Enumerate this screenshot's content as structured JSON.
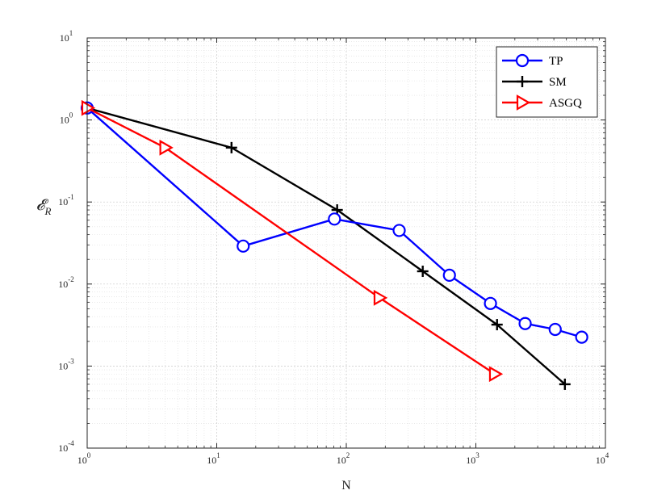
{
  "chart_data": {
    "type": "line",
    "title": "",
    "xlabel": "N",
    "ylabel": "𝓔_R",
    "ylabel_main": "𝓔",
    "ylabel_sub": "R",
    "x_scale": "log",
    "y_scale": "log",
    "xlim": [
      1,
      10000
    ],
    "ylim": [
      0.0001,
      10
    ],
    "grid": true,
    "legend_position": "top-right",
    "x_ticks": [
      {
        "value": 1,
        "base": "10",
        "exp": "0"
      },
      {
        "value": 10,
        "base": "10",
        "exp": "1"
      },
      {
        "value": 100,
        "base": "10",
        "exp": "2"
      },
      {
        "value": 1000,
        "base": "10",
        "exp": "3"
      },
      {
        "value": 10000,
        "base": "10",
        "exp": "4"
      }
    ],
    "y_ticks": [
      {
        "value": 0.0001,
        "base": "10",
        "exp": "-4"
      },
      {
        "value": 0.001,
        "base": "10",
        "exp": "-3"
      },
      {
        "value": 0.01,
        "base": "10",
        "exp": "-2"
      },
      {
        "value": 0.1,
        "base": "10",
        "exp": "-1"
      },
      {
        "value": 1,
        "base": "10",
        "exp": "0"
      },
      {
        "value": 10,
        "base": "10",
        "exp": "1"
      }
    ],
    "series": [
      {
        "name": "TP",
        "color": "#0000ff",
        "marker": "circle",
        "x": [
          1,
          16,
          81,
          256,
          625,
          1296,
          2401,
          4096,
          6561
        ],
        "y": [
          1.4,
          0.029,
          0.062,
          0.045,
          0.0128,
          0.0058,
          0.0033,
          0.0028,
          0.00225
        ]
      },
      {
        "name": "SM",
        "color": "#000000",
        "marker": "plus",
        "x": [
          1,
          13,
          85,
          389,
          1457,
          4865
        ],
        "y": [
          1.4,
          0.46,
          0.08,
          0.0143,
          0.0032,
          0.0006
        ]
      },
      {
        "name": "ASGQ",
        "color": "#ff0000",
        "marker": "triangle-right",
        "x": [
          1,
          4,
          180,
          1400
        ],
        "y": [
          1.4,
          0.46,
          0.0068,
          0.0008
        ]
      }
    ]
  }
}
